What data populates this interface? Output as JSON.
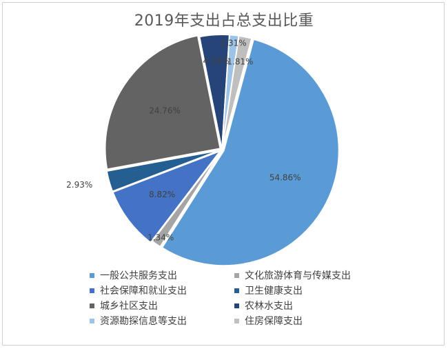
{
  "chart_data": {
    "type": "pie",
    "title": "2019年支出占总支出比重",
    "series": [
      {
        "name": "一般公共服务支出",
        "value": 54.86,
        "label": "54.86%",
        "color": "#5B9BD5"
      },
      {
        "name": "文化旅游体育与传媒支出",
        "value": 1.34,
        "label": "1.34%",
        "color": "#A5A5A5"
      },
      {
        "name": "社会保障和就业支出",
        "value": 8.82,
        "label": "8.82%",
        "color": "#4472C4"
      },
      {
        "name": "卫生健康支出",
        "value": 2.93,
        "label": "2.93%",
        "color": "#255E91"
      },
      {
        "name": "城乡社区支出",
        "value": 24.76,
        "label": "24.76%",
        "color": "#636363"
      },
      {
        "name": "农林水支出",
        "value": 4.18,
        "label": "4.18%",
        "color": "#264478"
      },
      {
        "name": "资源勘探信息等支出",
        "value": 1.31,
        "label": "1.31%",
        "color": "#9DC3E6"
      },
      {
        "name": "住房保障支出",
        "value": 1.81,
        "label": "1.81%",
        "color": "#BFBFBF"
      }
    ],
    "legend_position": "bottom"
  }
}
